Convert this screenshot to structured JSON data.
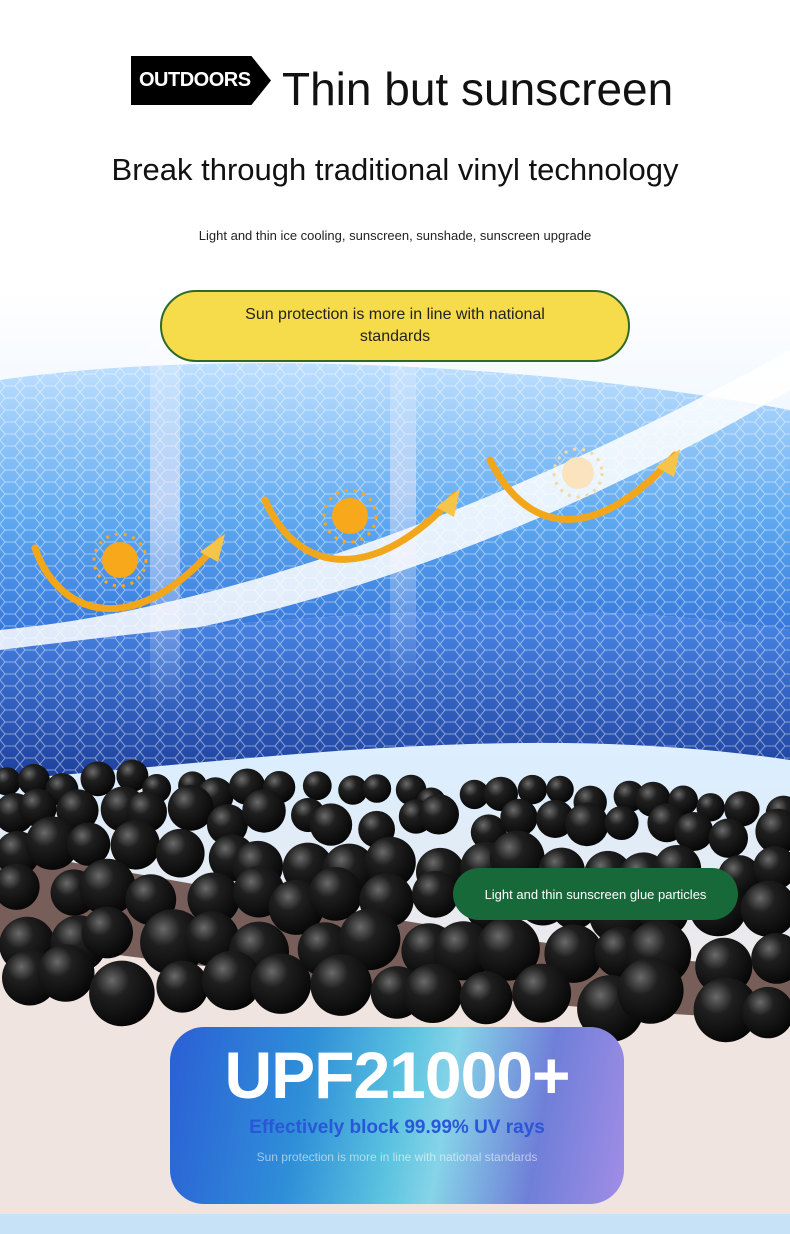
{
  "header": {
    "badge": "OUTDOORS",
    "title": "Thin but sunscreen",
    "subtitle": "Break through traditional vinyl technology",
    "tagline": "Light and thin ice cooling, sunscreen, sunshade, sunscreen upgrade"
  },
  "callouts": {
    "standards": "Sun protection is more in line with national standards",
    "particles": "Light and thin sunscreen glue particles"
  },
  "upf": {
    "title": "UPF21000+",
    "line1": "Effectively block 99.99% UV rays",
    "line2": "Sun protection is more in line with national standards"
  },
  "colors": {
    "badge_bg": "#000000",
    "pill_yellow": "#f6dc4a",
    "pill_green": "#17693a",
    "fabric_blue": "#3c8fe6",
    "particles": "#111111",
    "sun": "#f7a81b"
  }
}
